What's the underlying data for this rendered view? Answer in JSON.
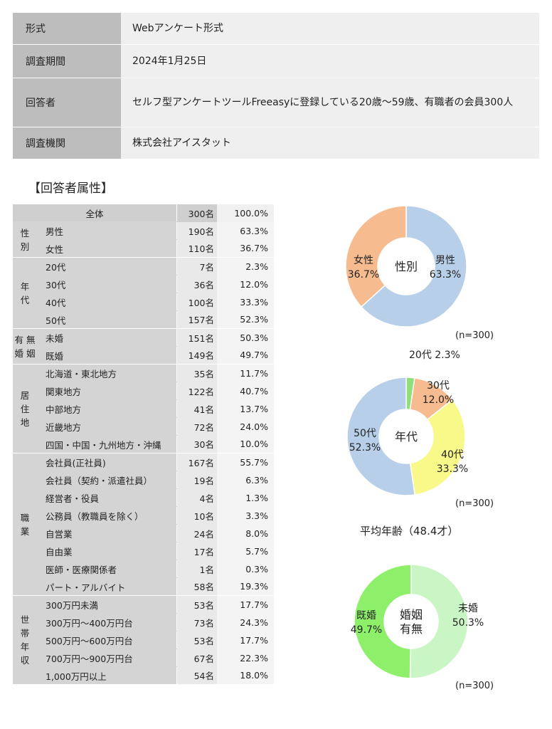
{
  "info": [
    {
      "label": "形式",
      "value": "Webアンケート形式"
    },
    {
      "label": "調査期間",
      "value": "2024年1月25日"
    },
    {
      "label": "回答者",
      "value": "セルフ型アンケートツールFreeasyに登録している20歳～59歳、有職者の会員300人"
    },
    {
      "label": "調査機関",
      "value": "株式会社アイスタット"
    }
  ],
  "attributes_title": "【回答者属性】",
  "total": {
    "label": "全体",
    "count": "300名",
    "pct": "100.0%"
  },
  "groups": [
    {
      "name": "性別",
      "rows": [
        {
          "label": "男性",
          "count": "190名",
          "pct": "63.3%"
        },
        {
          "label": "女性",
          "count": "110名",
          "pct": "36.7%"
        }
      ]
    },
    {
      "name": "年代",
      "rows": [
        {
          "label": "20代",
          "count": "7名",
          "pct": "2.3%"
        },
        {
          "label": "30代",
          "count": "36名",
          "pct": "12.0%"
        },
        {
          "label": "40代",
          "count": "100名",
          "pct": "33.3%"
        },
        {
          "label": "50代",
          "count": "157名",
          "pct": "52.3%"
        }
      ]
    },
    {
      "name": "有婚無姻",
      "rows": [
        {
          "label": "未婚",
          "count": "151名",
          "pct": "50.3%"
        },
        {
          "label": "既婚",
          "count": "149名",
          "pct": "49.7%"
        }
      ]
    },
    {
      "name": "居住地",
      "rows": [
        {
          "label": "北海道・東北地方",
          "count": "35名",
          "pct": "11.7%"
        },
        {
          "label": "関東地方",
          "count": "122名",
          "pct": "40.7%"
        },
        {
          "label": "中部地方",
          "count": "41名",
          "pct": "13.7%"
        },
        {
          "label": "近畿地方",
          "count": "72名",
          "pct": "24.0%"
        },
        {
          "label": "四国・中国・九州地方・沖縄",
          "count": "30名",
          "pct": "10.0%"
        }
      ]
    },
    {
      "name": "職業",
      "rows": [
        {
          "label": "会社員(正社員)",
          "count": "167名",
          "pct": "55.7%"
        },
        {
          "label": "会社員（契約・派遣社員）",
          "count": "19名",
          "pct": "6.3%"
        },
        {
          "label": "経営者・役員",
          "count": "4名",
          "pct": "1.3%"
        },
        {
          "label": "公務員（教職員を除く）",
          "count": "10名",
          "pct": "3.3%"
        },
        {
          "label": "自営業",
          "count": "24名",
          "pct": "8.0%"
        },
        {
          "label": "自由業",
          "count": "17名",
          "pct": "5.7%"
        },
        {
          "label": "医師・医療関係者",
          "count": "1名",
          "pct": "0.3%"
        },
        {
          "label": "パート・アルバイト",
          "count": "58名",
          "pct": "19.3%"
        }
      ]
    },
    {
      "name": "世帯年収",
      "rows": [
        {
          "label": "300万円未満",
          "count": "53名",
          "pct": "17.7%"
        },
        {
          "label": "300万円～400万円台",
          "count": "73名",
          "pct": "24.3%"
        },
        {
          "label": "500万円～600万円台",
          "count": "53名",
          "pct": "17.7%"
        },
        {
          "label": "700万円～900万円台",
          "count": "67名",
          "pct": "22.3%"
        },
        {
          "label": "1,000万円以上",
          "count": "54名",
          "pct": "18.0%"
        }
      ]
    }
  ],
  "avg_age": "平均年齢（48.4才）",
  "chart_data": [
    {
      "type": "pie",
      "center_label": [
        "性別"
      ],
      "n_note": "(n=300)",
      "slices": [
        {
          "name": "男性",
          "value": 63.3,
          "label": "63.3%",
          "color": "#b8cfe9"
        },
        {
          "name": "女性",
          "value": 36.7,
          "label": "36.7%",
          "color": "#f6bb8e"
        }
      ]
    },
    {
      "type": "pie",
      "center_label": [
        "年代"
      ],
      "n_note": "(n=300)",
      "slices": [
        {
          "name": "20代",
          "value": 2.3,
          "label": "2.3%",
          "color": "#8ee07b"
        },
        {
          "name": "30代",
          "value": 12.0,
          "label": "12.0%",
          "color": "#f6bb8e"
        },
        {
          "name": "40代",
          "value": 33.3,
          "label": "33.3%",
          "color": "#f9f98a"
        },
        {
          "name": "50代",
          "value": 52.3,
          "label": "52.3%",
          "color": "#b8cfe9"
        }
      ]
    },
    {
      "type": "pie",
      "center_label": [
        "婚姻",
        "有無"
      ],
      "n_note": "(n=300)",
      "slices": [
        {
          "name": "未婚",
          "value": 50.3,
          "label": "50.3%",
          "color": "#c9f6c4"
        },
        {
          "name": "既婚",
          "value": 49.7,
          "label": "49.7%",
          "color": "#8ef06a"
        }
      ]
    }
  ]
}
